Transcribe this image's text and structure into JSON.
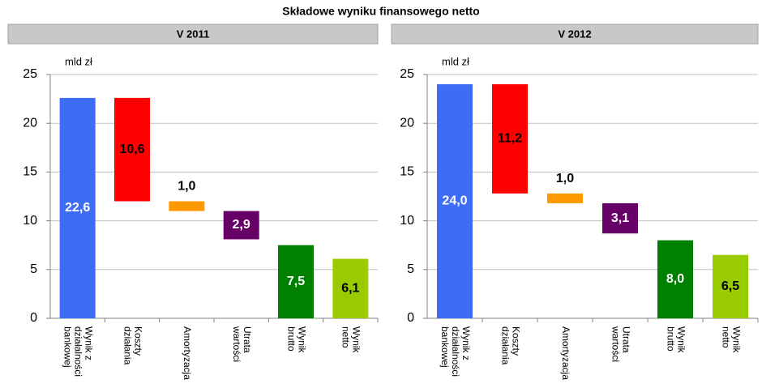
{
  "title": "Składowe wyniku finansowego netto",
  "chart_data": [
    {
      "type": "waterfall",
      "title": "V 2011",
      "y_label": "mld zł",
      "categories": [
        [
          "Wynik z",
          "działalności",
          "bankowej"
        ],
        [
          "Koszty",
          "działania"
        ],
        [
          "Amortyzacja"
        ],
        [
          "Utrata",
          "wartości"
        ],
        [
          "Wynik",
          "brutto"
        ],
        [
          "Wynik",
          "netto"
        ]
      ],
      "values": [
        22.6,
        10.6,
        1.0,
        2.9,
        7.5,
        6.1
      ],
      "value_labels": [
        "22,6",
        "10,6",
        "1,0",
        "2,9",
        "7,5",
        "6,1"
      ],
      "measure": [
        "total",
        "decrease",
        "decrease",
        "decrease",
        "total",
        "total"
      ],
      "colors": [
        "#3f6cf5",
        "#ff0000",
        "#ff9900",
        "#660066",
        "#008000",
        "#99cc00"
      ],
      "label_colors": [
        "#ffffff",
        "#000000",
        "#000000",
        "#ffffff",
        "#ffffff",
        "#000000"
      ],
      "ylim": [
        0,
        25
      ],
      "yticks": [
        0,
        5,
        10,
        15,
        20,
        25
      ],
      "grid": true
    },
    {
      "type": "waterfall",
      "title": "V 2012",
      "y_label": "mld zł",
      "categories": [
        [
          "Wynik z",
          "działalności",
          "bankowej"
        ],
        [
          "Koszty",
          "działania"
        ],
        [
          "Amortyzacja"
        ],
        [
          "Utrata",
          "wartości"
        ],
        [
          "Wynik",
          "brutto"
        ],
        [
          "Wynik",
          "netto"
        ]
      ],
      "values": [
        24.0,
        11.2,
        1.0,
        3.1,
        8.0,
        6.5
      ],
      "value_labels": [
        "24,0",
        "11,2",
        "1,0",
        "3,1",
        "8,0",
        "6,5"
      ],
      "measure": [
        "total",
        "decrease",
        "decrease",
        "decrease",
        "total",
        "total"
      ],
      "colors": [
        "#3f6cf5",
        "#ff0000",
        "#ff9900",
        "#660066",
        "#008000",
        "#99cc00"
      ],
      "label_colors": [
        "#ffffff",
        "#000000",
        "#000000",
        "#ffffff",
        "#ffffff",
        "#000000"
      ],
      "ylim": [
        0,
        25
      ],
      "yticks": [
        0,
        5,
        10,
        15,
        20,
        25
      ],
      "grid": true
    }
  ]
}
